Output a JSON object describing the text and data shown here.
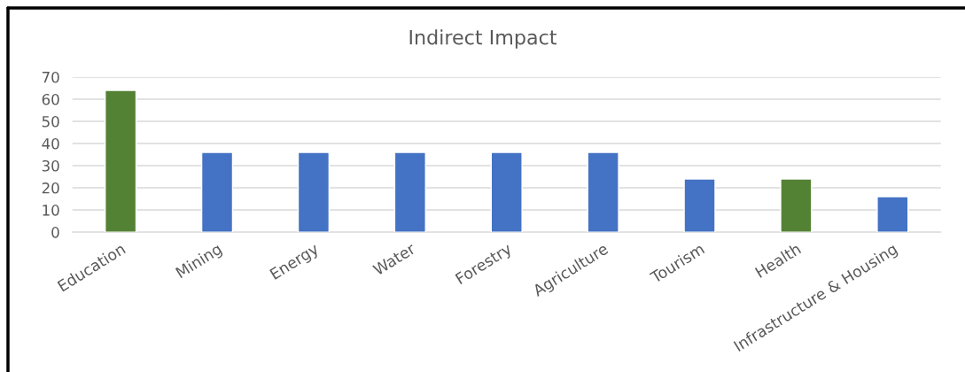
{
  "chart_data": {
    "type": "bar",
    "title": "Indirect Impact",
    "categories": [
      "Education",
      "Mining",
      "Energy",
      "Water",
      "Forestry",
      "Agriculture",
      "Tourism",
      "Health",
      "Infrastructure & Housing"
    ],
    "values": [
      64,
      36,
      36,
      36,
      36,
      36,
      24,
      24,
      16
    ],
    "colors": [
      "#548235",
      "#4472c4",
      "#4472c4",
      "#4472c4",
      "#4472c4",
      "#4472c4",
      "#4472c4",
      "#548235",
      "#4472c4"
    ],
    "ylim": [
      0,
      70
    ],
    "yticks": [
      0,
      10,
      20,
      30,
      40,
      50,
      60,
      70
    ],
    "grid": "y",
    "legend": false
  }
}
